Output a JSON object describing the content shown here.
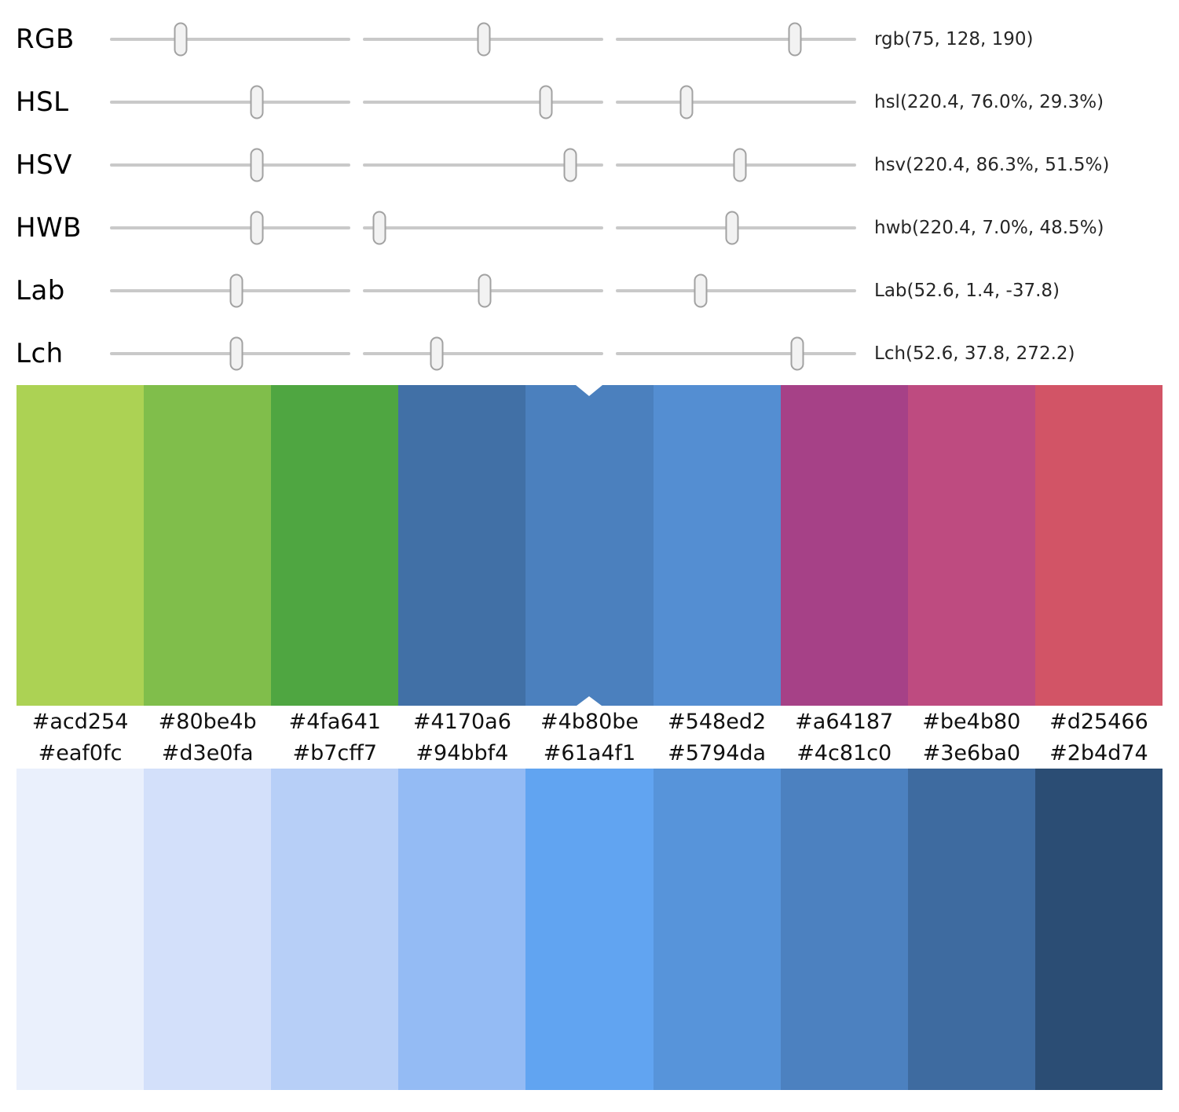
{
  "sliders": {
    "rows": [
      {
        "label": "RGB",
        "value_text": "rgb(75, 128, 190)",
        "positions": [
          0.294,
          0.502,
          0.745
        ]
      },
      {
        "label": "HSL",
        "value_text": "hsl(220.4, 76.0%, 29.3%)",
        "positions": [
          0.612,
          0.76,
          0.293
        ]
      },
      {
        "label": "HSV",
        "value_text": "hsv(220.4, 86.3%, 51.5%)",
        "positions": [
          0.612,
          0.863,
          0.515
        ]
      },
      {
        "label": "HWB",
        "value_text": "hwb(220.4, 7.0%, 48.5%)",
        "positions": [
          0.612,
          0.07,
          0.485
        ]
      },
      {
        "label": "Lab",
        "value_text": "Lab(52.6, 1.4, -37.8)",
        "positions": [
          0.526,
          0.508,
          0.354
        ]
      },
      {
        "label": "Lch",
        "value_text": "Lch(52.6, 37.8, 272.2)",
        "positions": [
          0.526,
          0.308,
          0.756
        ]
      }
    ]
  },
  "palette_top": {
    "selected_index": 4,
    "hex": [
      "#acd254",
      "#80be4b",
      "#4fa641",
      "#4170a6",
      "#4b80be",
      "#548ed2",
      "#a64187",
      "#be4b80",
      "#d25466"
    ]
  },
  "palette_bottom": {
    "hex": [
      "#eaf0fc",
      "#d3e0fa",
      "#b7cff7",
      "#94bbf4",
      "#61a4f1",
      "#5794da",
      "#4c81c0",
      "#3e6ba0",
      "#2b4d74"
    ]
  },
  "ui_colors": {
    "track": "#c9c9c9",
    "handle_fill": "#f2f2f2",
    "handle_border": "#a2a2a2",
    "notch": "#ffffff",
    "label_text": "#000000",
    "value_text": "#262626"
  }
}
